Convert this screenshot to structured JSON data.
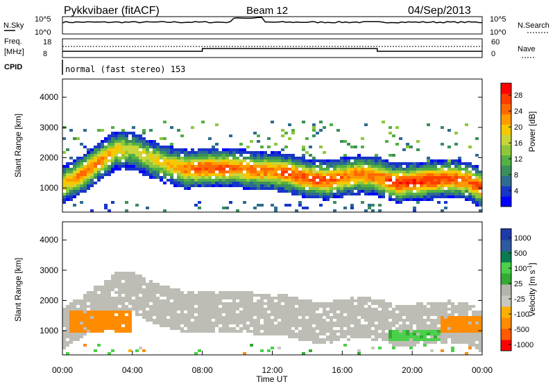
{
  "header": {
    "station": "Pykkvibaer (fitACF)",
    "beam": "Beam 12",
    "date": "04/Sep/2013"
  },
  "summary": {
    "nsky_label": "N.Sky",
    "nsky_ticks": [
      "10^5",
      "10^0"
    ],
    "nsearch_label": "N.Search",
    "nsearch_ticks": [
      "10^5",
      "10^0"
    ],
    "freq_label": "Freq.",
    "freq_unit": "[MHz]",
    "freq_ticks": [
      "18",
      "8"
    ],
    "nave_label": "Nave",
    "nave_ticks": [
      "60",
      "0"
    ],
    "cpid_label": "CPID",
    "cpid_value": "normal (fast stereo) 153"
  },
  "colors": {
    "power": [
      "#0000ff",
      "#1836c8",
      "#2f6b8f",
      "#3a8f5a",
      "#52b044",
      "#8ec83a",
      "#c8d63a",
      "#f5c800",
      "#ff9a00",
      "#ff6a00",
      "#ff3c00",
      "#ff0000"
    ],
    "velocity": [
      "#ff0000",
      "#ff5a00",
      "#ff8c00",
      "#ffb000",
      "#c8c8c0",
      "#b4b4ac",
      "#33aa33",
      "#4ad04a",
      "#0a7a50",
      "#2e5aa0",
      "#1e3ca8"
    ],
    "ground_scatter": "#bdbdb5"
  },
  "chart_data": [
    {
      "type": "heatmap",
      "name": "power",
      "ylabel": "Slant Range [km]",
      "yticks": [
        "4000",
        "3000",
        "2000",
        "1000"
      ],
      "ylim": [
        200,
        4600
      ],
      "colorbar_label": "Power [dB]",
      "colorbar_ticks": [
        "28",
        "24",
        "20",
        "16",
        "12",
        "8",
        "4"
      ],
      "colorbar_range": [
        0,
        31
      ],
      "band_hours": [
        0,
        1,
        2,
        3,
        4,
        5,
        6,
        7,
        8,
        9,
        10,
        11,
        12,
        13,
        14,
        15,
        16,
        17,
        18,
        19,
        20,
        21,
        22,
        23,
        24
      ],
      "band_range_km": [
        1150,
        1500,
        1900,
        2300,
        2300,
        2000,
        1800,
        1650,
        1700,
        1700,
        1700,
        1600,
        1600,
        1500,
        1350,
        1300,
        1400,
        1500,
        1400,
        1200,
        1250,
        1300,
        1350,
        1300,
        1000
      ],
      "band_power_db": [
        20,
        24,
        24,
        20,
        16,
        18,
        20,
        24,
        26,
        26,
        24,
        24,
        24,
        26,
        26,
        26,
        24,
        24,
        24,
        28,
        28,
        28,
        26,
        24,
        28
      ]
    },
    {
      "type": "heatmap",
      "name": "velocity",
      "ylabel": "Slant Range [km]",
      "yticks": [
        "4000",
        "3000",
        "2000",
        "1000"
      ],
      "ylim": [
        200,
        4600
      ],
      "colorbar_label": "Velocity [m s^-1]",
      "colorbar_ticks": [
        "1000",
        "500",
        "100",
        "25",
        "-25",
        "-100",
        "-500",
        "-1000"
      ],
      "xlabel": "Time UT",
      "xticks": [
        "00:00",
        "04:00",
        "08:00",
        "12:00",
        "16:00",
        "20:00",
        "00:00"
      ],
      "xlim": [
        0,
        24
      ],
      "patches": [
        {
          "hours": [
            0.3,
            3.8
          ],
          "range_km": [
            1000,
            1700
          ],
          "velocity": -300
        },
        {
          "hours": [
            18.5,
            21.5
          ],
          "range_km": [
            750,
            1100
          ],
          "velocity": 150
        },
        {
          "hours": [
            21.5,
            24
          ],
          "range_km": [
            1000,
            1500
          ],
          "velocity": -200
        }
      ]
    }
  ]
}
